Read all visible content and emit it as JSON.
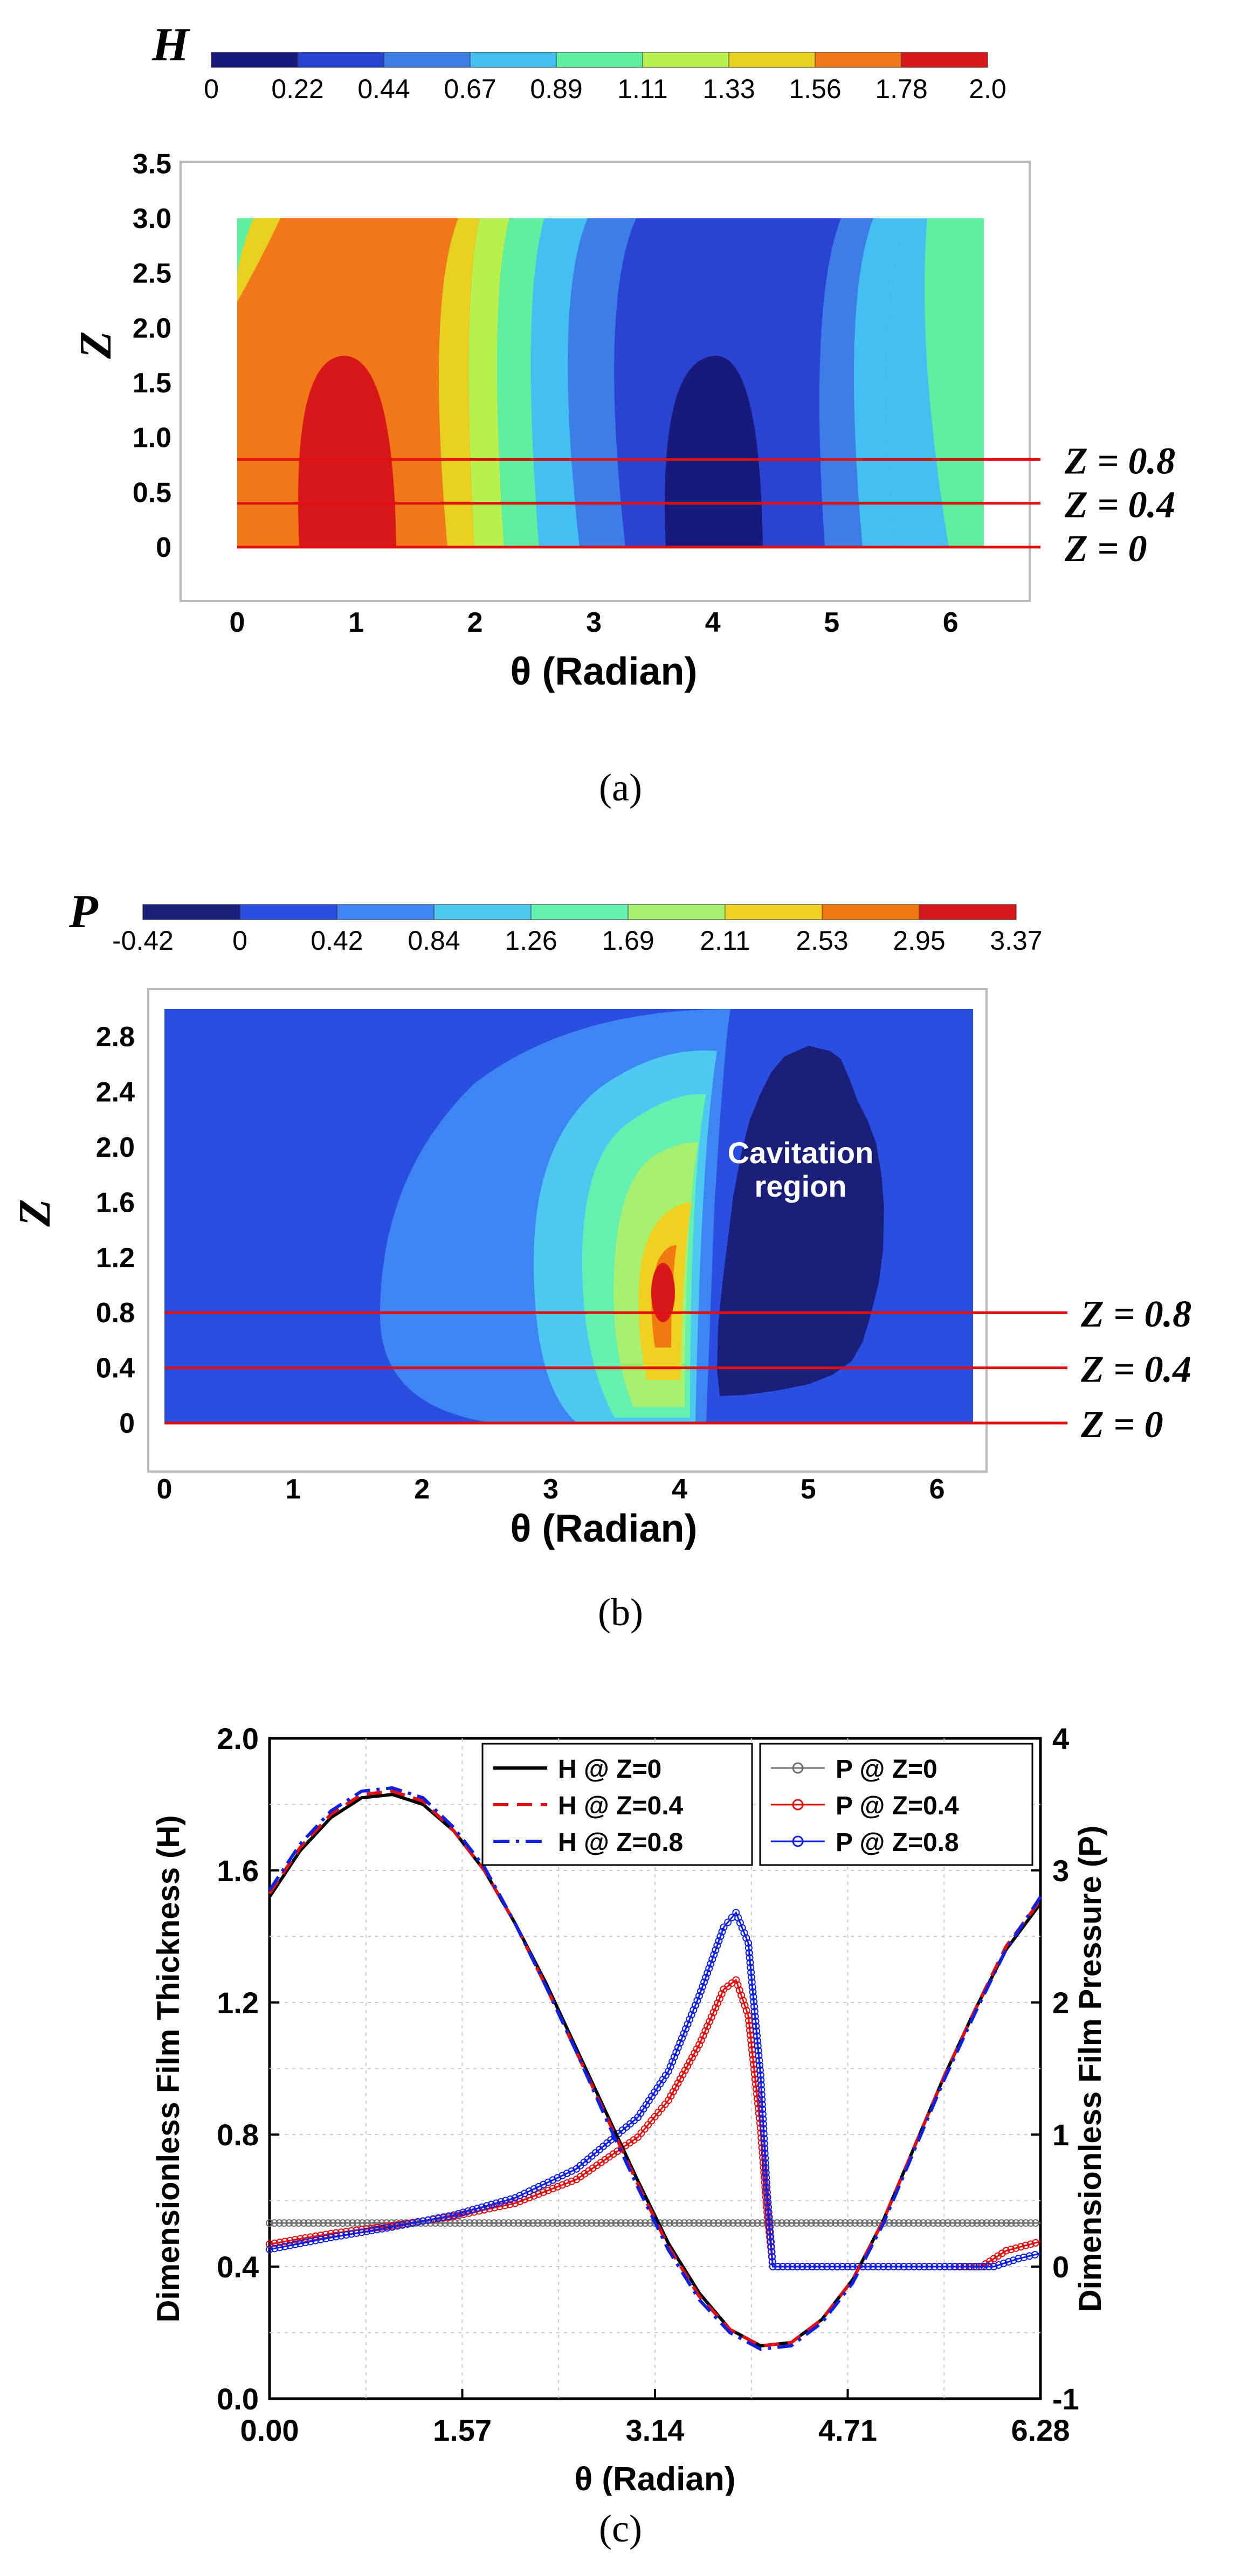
{
  "chart_data": [
    {
      "type": "heatmap",
      "panel": "(a)",
      "colorbar": {
        "symbol": "H",
        "ticks": [
          "0",
          "0.22",
          "0.44",
          "0.67",
          "0.89",
          "1.11",
          "1.33",
          "1.56",
          "1.78",
          "2.0"
        ],
        "colors": [
          "#18197a",
          "#2a44d2",
          "#3d7ee6",
          "#44c0f0",
          "#5ef0a0",
          "#b8f050",
          "#e8d020",
          "#f07818",
          "#d81818"
        ]
      },
      "xlabel": "θ (Radian)",
      "ylabel": "Z",
      "xticks": [
        "0",
        "1",
        "2",
        "3",
        "4",
        "5",
        "6"
      ],
      "yticks": [
        "0",
        "0.5",
        "1.0",
        "1.5",
        "2.0",
        "2.5",
        "3.0",
        "3.5"
      ],
      "xlim": [
        0,
        6.28
      ],
      "ylim": [
        0,
        3.5
      ],
      "domain_z": [
        0,
        3.0
      ],
      "lines": [
        {
          "z": 0.8,
          "label": "Z = 0.8"
        },
        {
          "z": 0.4,
          "label": "Z = 0.4"
        },
        {
          "z": 0,
          "label": "Z = 0"
        }
      ]
    },
    {
      "type": "heatmap",
      "panel": "(b)",
      "colorbar": {
        "symbol": "P",
        "ticks": [
          "-0.42",
          "0",
          "0.42",
          "0.84",
          "1.26",
          "1.69",
          "2.11",
          "2.53",
          "2.95",
          "3.37"
        ],
        "colors": [
          "#1a1f7a",
          "#2a4ee0",
          "#3d85f0",
          "#4ec8f0",
          "#66f0b0",
          "#a8f070",
          "#f0d020",
          "#f07a10",
          "#d81818"
        ]
      },
      "xlabel": "θ (Radian)",
      "ylabel": "Z",
      "xticks": [
        "0",
        "1",
        "2",
        "3",
        "4",
        "5",
        "6"
      ],
      "yticks": [
        "0",
        "0.4",
        "0.8",
        "1.2",
        "1.6",
        "2.0",
        "2.4",
        "2.8"
      ],
      "xlim": [
        0,
        6.28
      ],
      "ylim": [
        0,
        3.0
      ],
      "annotation": "Cavitation\nregion",
      "lines": [
        {
          "z": 0.8,
          "label": "Z = 0.8"
        },
        {
          "z": 0.4,
          "label": "Z = 0.4"
        },
        {
          "z": 0,
          "label": "Z = 0"
        }
      ]
    },
    {
      "type": "line",
      "panel": "(c)",
      "xlabel": "θ (Radian)",
      "ylabel": "Dimensionless Film Thickness (H)",
      "y2label": "Dimensionless Film Pressure (P)",
      "xlim": [
        0,
        6.28
      ],
      "ylim": [
        0,
        2.0
      ],
      "y2lim": [
        -1,
        4
      ],
      "xticks": [
        "0.00",
        "1.57",
        "3.14",
        "4.71",
        "6.28"
      ],
      "yticks": [
        "0.0",
        "0.4",
        "0.8",
        "1.2",
        "1.6",
        "2.0"
      ],
      "y2ticks": [
        "-1",
        "0",
        "1",
        "2",
        "3",
        "4"
      ],
      "grid": true,
      "x": [
        0,
        0.25,
        0.5,
        0.75,
        1.0,
        1.25,
        1.5,
        1.75,
        2.0,
        2.25,
        2.5,
        2.75,
        3.0,
        3.25,
        3.5,
        3.75,
        4.0,
        4.25,
        4.5,
        4.75,
        5.0,
        5.25,
        5.5,
        5.75,
        6.0,
        6.28
      ],
      "series": [
        {
          "name": "H @ Z=0",
          "axis": "left",
          "color": "#000000",
          "dash": "solid",
          "values": [
            1.52,
            1.66,
            1.76,
            1.82,
            1.83,
            1.8,
            1.72,
            1.6,
            1.44,
            1.26,
            1.06,
            0.86,
            0.66,
            0.47,
            0.32,
            0.21,
            0.16,
            0.17,
            0.24,
            0.36,
            0.54,
            0.76,
            0.98,
            1.18,
            1.36,
            1.5
          ]
        },
        {
          "name": "H @ Z=0.4",
          "axis": "left",
          "color": "#e01010",
          "dash": "dashed",
          "values": [
            1.53,
            1.67,
            1.77,
            1.83,
            1.84,
            1.81,
            1.72,
            1.6,
            1.44,
            1.25,
            1.05,
            0.85,
            0.65,
            0.46,
            0.31,
            0.21,
            0.16,
            0.17,
            0.24,
            0.36,
            0.54,
            0.76,
            0.98,
            1.18,
            1.37,
            1.51
          ]
        },
        {
          "name": "H @ Z=0.8",
          "axis": "left",
          "color": "#1020e0",
          "dash": "dashdot",
          "values": [
            1.54,
            1.68,
            1.78,
            1.84,
            1.85,
            1.82,
            1.73,
            1.61,
            1.44,
            1.25,
            1.05,
            0.84,
            0.64,
            0.45,
            0.3,
            0.2,
            0.15,
            0.16,
            0.23,
            0.35,
            0.53,
            0.75,
            0.97,
            1.17,
            1.36,
            1.52
          ]
        }
      ],
      "pressure_series": [
        {
          "name": "P @ Z=0",
          "axis": "right",
          "color": "#707070",
          "x": [
            0,
            6.28
          ],
          "values": [
            0.33,
            0.33
          ]
        },
        {
          "name": "P @ Z=0.4",
          "axis": "right",
          "color": "#e01010",
          "x": [
            0,
            0.5,
            1.0,
            1.5,
            2.0,
            2.5,
            3.0,
            3.25,
            3.5,
            3.7,
            3.8,
            3.9,
            4.0,
            4.05,
            4.1,
            4.5,
            5.0,
            5.5,
            5.8,
            6.0,
            6.28
          ],
          "values": [
            0.17,
            0.25,
            0.31,
            0.38,
            0.48,
            0.66,
            0.98,
            1.26,
            1.68,
            2.1,
            2.17,
            1.9,
            1.05,
            0.45,
            0.0,
            0.0,
            0.0,
            0.0,
            0.0,
            0.12,
            0.19
          ]
        },
        {
          "name": "P @ Z=0.8",
          "axis": "right",
          "color": "#1020e0",
          "x": [
            0,
            0.5,
            1.0,
            1.5,
            2.0,
            2.5,
            3.0,
            3.25,
            3.5,
            3.7,
            3.8,
            3.9,
            4.0,
            4.05,
            4.1,
            4.5,
            5.0,
            5.5,
            5.9,
            6.1,
            6.28
          ],
          "values": [
            0.13,
            0.22,
            0.3,
            0.39,
            0.52,
            0.74,
            1.13,
            1.48,
            2.05,
            2.57,
            2.68,
            2.45,
            1.45,
            0.6,
            0.0,
            0.0,
            0.0,
            0.0,
            0.0,
            0.06,
            0.1
          ]
        }
      ],
      "legend": [
        "H @ Z=0",
        "H @ Z=0.4",
        "H @ Z=0.8",
        "P @ Z=0",
        "P @ Z=0.4",
        "P @ Z=0.8"
      ]
    }
  ],
  "captions": {
    "a": "(a)",
    "b": "(b)",
    "c": "(c)"
  },
  "annotation_lines": [
    "Cavitation",
    "region"
  ]
}
